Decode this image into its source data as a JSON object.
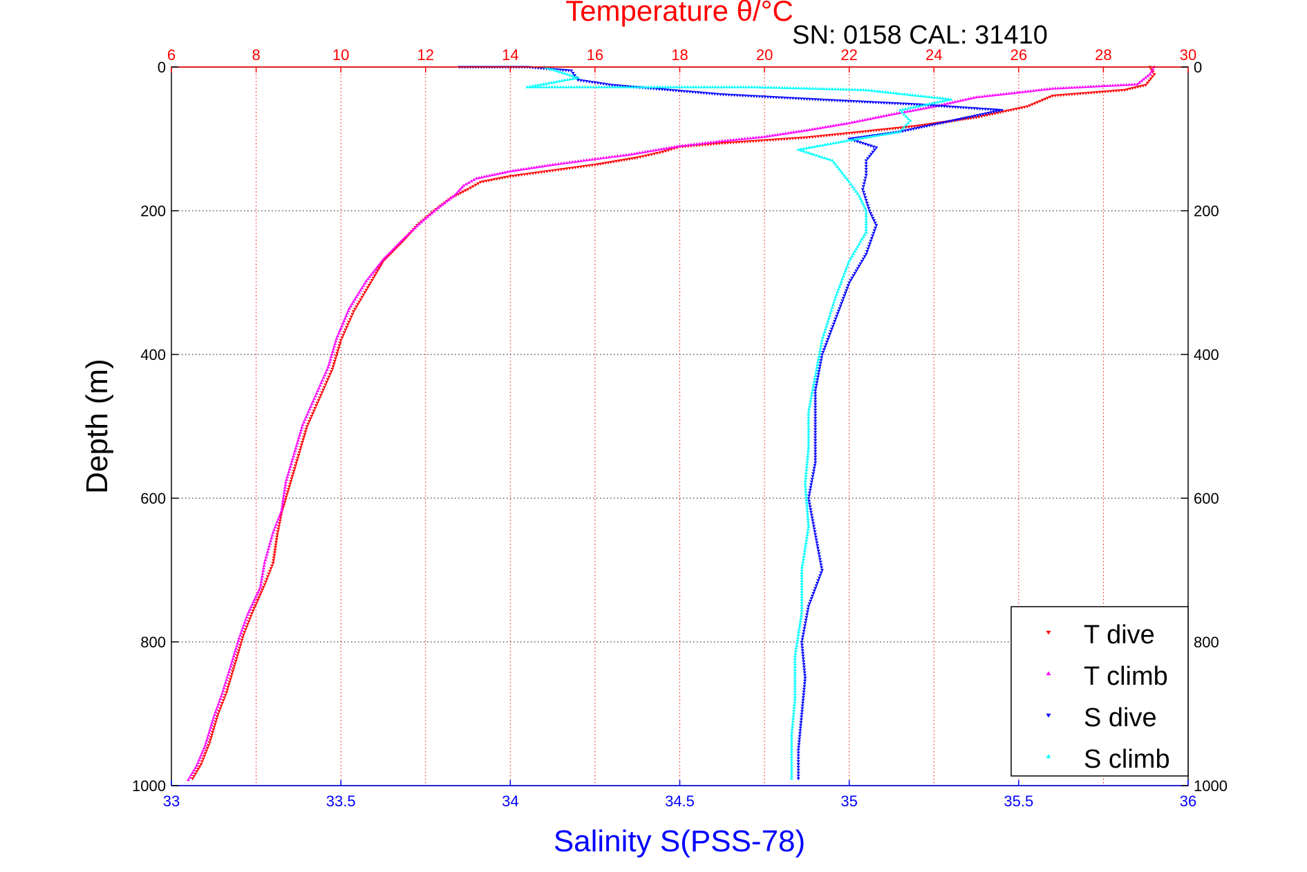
{
  "chart_data": {
    "type": "scatter",
    "title": "SN: 0158  CAL: 31410",
    "top_axis": {
      "label": "Temperature θ/°C",
      "range": [
        6,
        30
      ],
      "ticks": [
        6,
        8,
        10,
        12,
        14,
        16,
        18,
        20,
        22,
        24,
        26,
        28,
        30
      ],
      "color": "#ff0000"
    },
    "bottom_axis": {
      "label": "Salinity S(PSS-78)",
      "range": [
        33,
        36
      ],
      "ticks": [
        "33",
        "33.5",
        "34",
        "34.5",
        "35",
        "35.5",
        "36"
      ],
      "color": "#0000ff"
    },
    "y_axis": {
      "label": "Depth (m)",
      "range": [
        0,
        1000
      ],
      "reversed": true,
      "ticks": [
        0,
        200,
        400,
        600,
        800,
        1000
      ]
    },
    "grid": true,
    "legend": {
      "placement": "bottom-right",
      "entries": [
        {
          "label": "T dive",
          "color": "#ff0000",
          "marker": "triangle-down"
        },
        {
          "label": "T climb",
          "color": "#ff00ff",
          "marker": "triangle-up"
        },
        {
          "label": "S dive",
          "color": "#0000ff",
          "marker": "triangle-down"
        },
        {
          "label": "S climb",
          "color": "#00ffff",
          "marker": "triangle-up"
        }
      ]
    },
    "series": [
      {
        "name": "T dive",
        "axis": "temperature",
        "color": "#ff0000",
        "marker": "triangle-down",
        "points": [
          [
            29.1,
            0
          ],
          [
            29.2,
            10
          ],
          [
            29.0,
            25
          ],
          [
            28.5,
            32
          ],
          [
            26.8,
            40
          ],
          [
            26.2,
            55
          ],
          [
            25.0,
            70
          ],
          [
            23.6,
            82
          ],
          [
            22.0,
            92
          ],
          [
            21.0,
            98
          ],
          [
            20.0,
            102
          ],
          [
            19.0,
            106
          ],
          [
            18.0,
            111
          ],
          [
            17.6,
            118
          ],
          [
            17.0,
            126
          ],
          [
            16.0,
            136
          ],
          [
            15.0,
            144
          ],
          [
            14.0,
            152
          ],
          [
            13.3,
            160
          ],
          [
            13.0,
            170
          ],
          [
            12.6,
            182
          ],
          [
            12.2,
            200
          ],
          [
            11.8,
            220
          ],
          [
            11.5,
            240
          ],
          [
            11.0,
            270
          ],
          [
            10.7,
            300
          ],
          [
            10.3,
            340
          ],
          [
            10.0,
            380
          ],
          [
            9.8,
            420
          ],
          [
            9.5,
            460
          ],
          [
            9.2,
            500
          ],
          [
            9.0,
            540
          ],
          [
            8.8,
            580
          ],
          [
            8.6,
            620
          ],
          [
            8.5,
            650
          ],
          [
            8.4,
            690
          ],
          [
            8.2,
            720
          ],
          [
            7.9,
            760
          ],
          [
            7.7,
            790
          ],
          [
            7.5,
            830
          ],
          [
            7.3,
            870
          ],
          [
            7.1,
            900
          ],
          [
            6.9,
            940
          ],
          [
            6.7,
            970
          ],
          [
            6.5,
            990
          ]
        ]
      },
      {
        "name": "T climb",
        "axis": "temperature",
        "color": "#ff00ff",
        "marker": "triangle-up",
        "points": [
          [
            29.2,
            0
          ],
          [
            29.1,
            10
          ],
          [
            28.8,
            24
          ],
          [
            26.8,
            30
          ],
          [
            25.0,
            42
          ],
          [
            24.0,
            55
          ],
          [
            23.0,
            66
          ],
          [
            22.0,
            78
          ],
          [
            21.0,
            88
          ],
          [
            20.0,
            97
          ],
          [
            19.0,
            103
          ],
          [
            18.0,
            110
          ],
          [
            17.5,
            115
          ],
          [
            16.8,
            122
          ],
          [
            16.0,
            128
          ],
          [
            15.0,
            136
          ],
          [
            14.0,
            145
          ],
          [
            13.2,
            155
          ],
          [
            12.9,
            165
          ],
          [
            12.7,
            178
          ],
          [
            12.3,
            196
          ],
          [
            11.9,
            216
          ],
          [
            11.5,
            238
          ],
          [
            11.0,
            268
          ],
          [
            10.6,
            298
          ],
          [
            10.2,
            336
          ],
          [
            9.9,
            378
          ],
          [
            9.7,
            418
          ],
          [
            9.4,
            458
          ],
          [
            9.1,
            498
          ],
          [
            8.9,
            538
          ],
          [
            8.7,
            578
          ],
          [
            8.6,
            618
          ],
          [
            8.4,
            648
          ],
          [
            8.2,
            690
          ],
          [
            8.1,
            724
          ],
          [
            7.8,
            762
          ],
          [
            7.6,
            795
          ],
          [
            7.4,
            834
          ],
          [
            7.2,
            872
          ],
          [
            7.0,
            905
          ],
          [
            6.8,
            944
          ],
          [
            6.6,
            972
          ],
          [
            6.4,
            992
          ]
        ]
      },
      {
        "name": "S dive",
        "axis": "salinity",
        "color": "#0000ff",
        "marker": "triangle-down",
        "points": [
          [
            33.85,
            0
          ],
          [
            34.05,
            0
          ],
          [
            34.18,
            5
          ],
          [
            34.2,
            18
          ],
          [
            34.3,
            25
          ],
          [
            34.62,
            38
          ],
          [
            34.9,
            45
          ],
          [
            35.2,
            52
          ],
          [
            35.45,
            60
          ],
          [
            35.3,
            75
          ],
          [
            35.15,
            90
          ],
          [
            35.0,
            100
          ],
          [
            35.08,
            112
          ],
          [
            35.05,
            130
          ],
          [
            35.05,
            150
          ],
          [
            35.04,
            170
          ],
          [
            35.06,
            200
          ],
          [
            35.08,
            220
          ],
          [
            35.05,
            260
          ],
          [
            35.0,
            300
          ],
          [
            34.96,
            350
          ],
          [
            34.92,
            400
          ],
          [
            34.9,
            450
          ],
          [
            34.9,
            500
          ],
          [
            34.9,
            550
          ],
          [
            34.88,
            600
          ],
          [
            34.9,
            650
          ],
          [
            34.92,
            700
          ],
          [
            34.88,
            750
          ],
          [
            34.86,
            800
          ],
          [
            34.87,
            850
          ],
          [
            34.86,
            900
          ],
          [
            34.85,
            950
          ],
          [
            34.85,
            990
          ]
        ]
      },
      {
        "name": "S climb",
        "axis": "salinity",
        "color": "#00ffff",
        "marker": "triangle-up",
        "points": [
          [
            34.1,
            0
          ],
          [
            34.2,
            15
          ],
          [
            34.05,
            28
          ],
          [
            34.4,
            28
          ],
          [
            34.72,
            28
          ],
          [
            34.9,
            30
          ],
          [
            35.05,
            32
          ],
          [
            35.3,
            45
          ],
          [
            35.15,
            60
          ],
          [
            35.18,
            75
          ],
          [
            35.15,
            90
          ],
          [
            35.0,
            102
          ],
          [
            34.85,
            115
          ],
          [
            34.95,
            130
          ],
          [
            35.0,
            160
          ],
          [
            35.03,
            180
          ],
          [
            35.05,
            200
          ],
          [
            35.05,
            230
          ],
          [
            35.0,
            270
          ],
          [
            34.96,
            320
          ],
          [
            34.92,
            380
          ],
          [
            34.9,
            430
          ],
          [
            34.88,
            480
          ],
          [
            34.88,
            530
          ],
          [
            34.87,
            580
          ],
          [
            34.88,
            640
          ],
          [
            34.86,
            700
          ],
          [
            34.86,
            760
          ],
          [
            34.84,
            820
          ],
          [
            34.84,
            880
          ],
          [
            34.83,
            930
          ],
          [
            34.83,
            990
          ]
        ]
      }
    ]
  }
}
